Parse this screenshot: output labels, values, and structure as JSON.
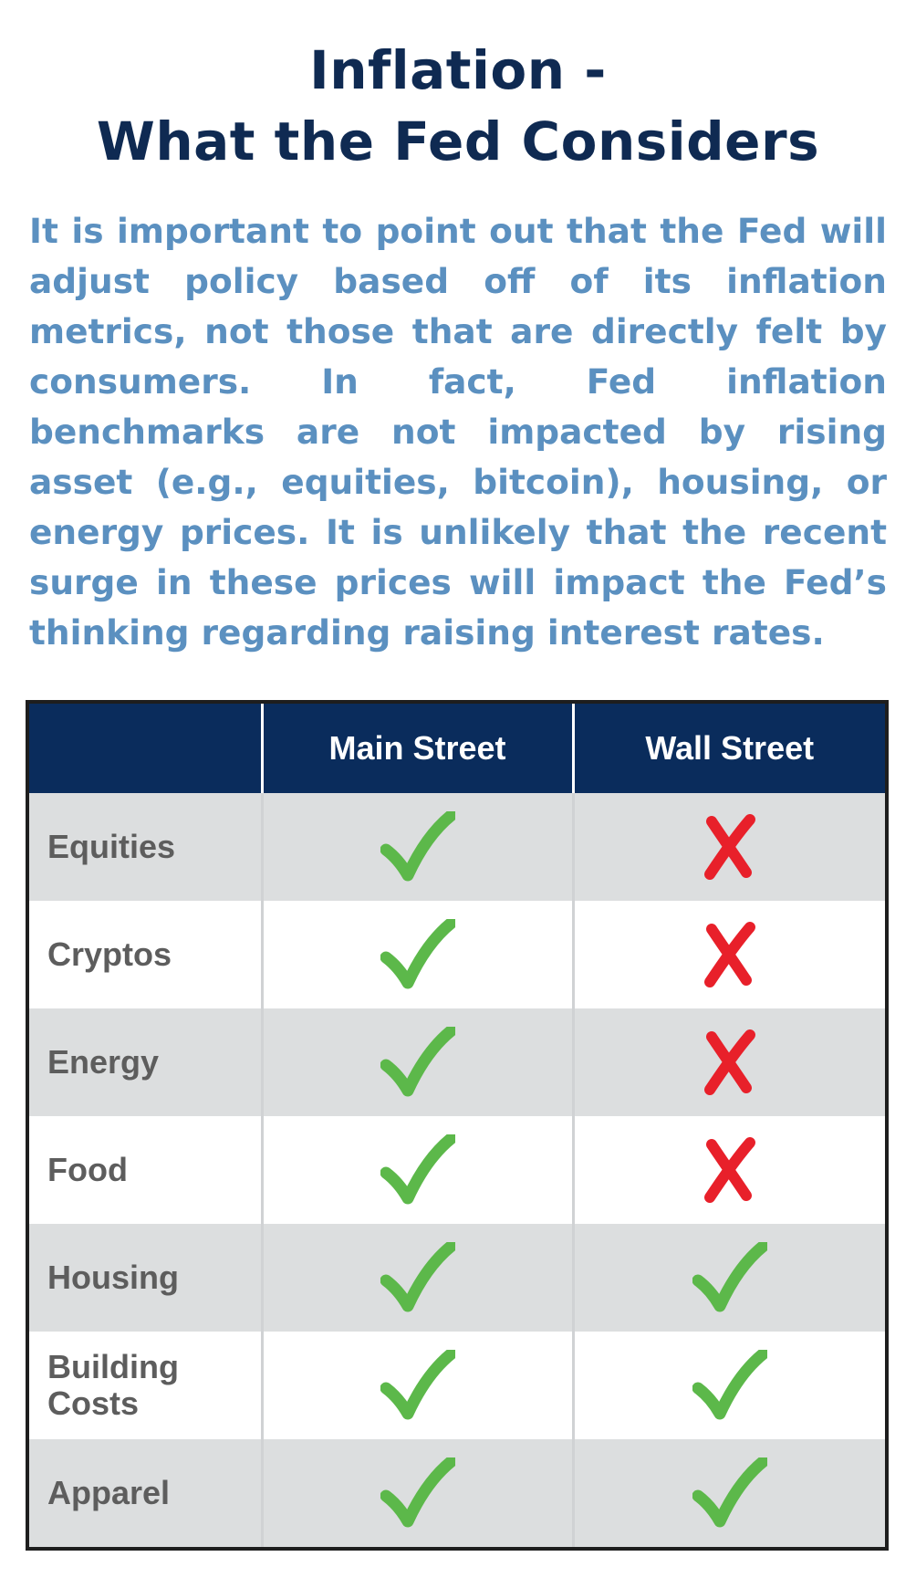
{
  "title": {
    "line1": "Inflation -",
    "line2": "What the Fed Considers"
  },
  "intro": "It is important to point out that the Fed will adjust policy based off of its inflation metrics, not those that are directly felt by consumers. In fact, Fed inflation benchmarks are not impacted by rising asset (e.g., equities, bitcoin), housing, or energy prices. It is unlikely that the recent surge in these prices will impact the Fed’s thinking regarding raising interest rates.",
  "colors": {
    "title": "#0f2a52",
    "intro": "#5b90c0",
    "header_bg": "#0a2c5c",
    "check": "#5cb84a",
    "cross": "#e8202a",
    "row_alt": "#dcdedf"
  },
  "table": {
    "headers": [
      "",
      "Main Street",
      "Wall Street"
    ],
    "rows": [
      {
        "label": "Equities",
        "main": "check-icon",
        "wall": "cross-icon"
      },
      {
        "label": "Cryptos",
        "main": "check-icon",
        "wall": "cross-icon"
      },
      {
        "label": "Energy",
        "main": "check-icon",
        "wall": "cross-icon"
      },
      {
        "label": "Food",
        "main": "check-icon",
        "wall": "cross-icon"
      },
      {
        "label": "Housing",
        "main": "check-icon",
        "wall": "check-icon"
      },
      {
        "label": "Building Costs",
        "main": "check-icon",
        "wall": "check-icon"
      },
      {
        "label": "Apparel",
        "main": "check-icon",
        "wall": "check-icon"
      }
    ]
  }
}
